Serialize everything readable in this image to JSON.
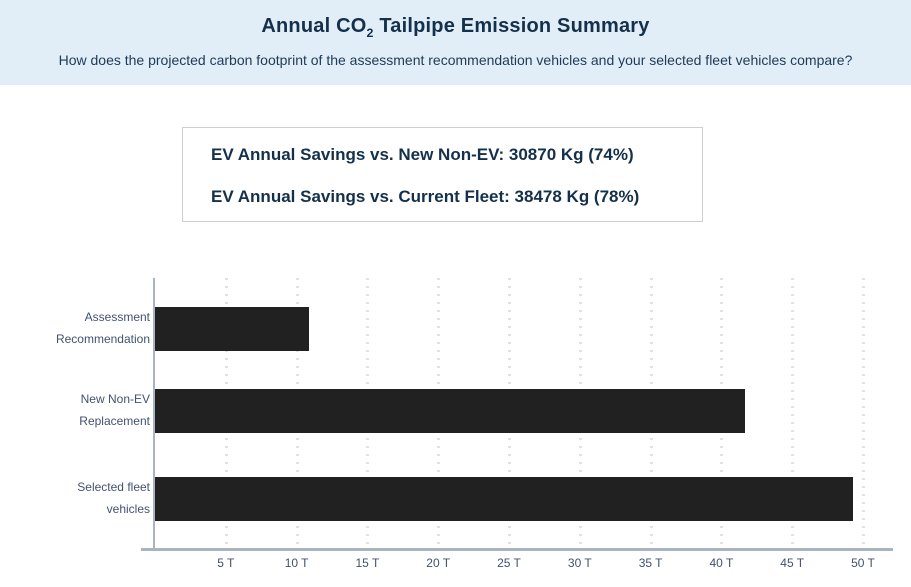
{
  "header": {
    "title_prefix": "Annual CO",
    "title_sub": "2",
    "title_suffix": " Tailpipe Emission Summary",
    "subtitle": "How does the projected carbon footprint of the assessment recommendation vehicles and your selected fleet vehicles compare?"
  },
  "savings_box": {
    "line1": "EV Annual Savings vs. New Non-EV: 30870 Kg (74%)",
    "line2": "EV Annual Savings vs. Current Fleet: 38478 Kg (78%)"
  },
  "chart_data": {
    "type": "bar",
    "orientation": "horizontal",
    "title": "Annual CO2 Tailpipe Emission Summary",
    "categories": [
      "Assessment Recommendation",
      "New Non-EV Replacement",
      "Selected fleet vehicles"
    ],
    "category_lines": [
      [
        "Assessment",
        "Recommendation"
      ],
      [
        "New Non-EV",
        "Replacement"
      ],
      [
        "Selected fleet",
        "vehicles"
      ]
    ],
    "values_tonnes": [
      10.85,
      41.7,
      49.3
    ],
    "values_kg": [
      10846,
      41716,
      49330
    ],
    "unit": "T",
    "xlabel": "",
    "ylabel": "",
    "xlim": [
      0,
      52
    ],
    "x_ticks": [
      {
        "value": 5,
        "label": "5 T"
      },
      {
        "value": 10,
        "label": "10 T"
      },
      {
        "value": 15,
        "label": "15 T"
      },
      {
        "value": 20,
        "label": "20 T"
      },
      {
        "value": 25,
        "label": "25 T"
      },
      {
        "value": 30,
        "label": "30 T"
      },
      {
        "value": 35,
        "label": "35 T"
      },
      {
        "value": 40,
        "label": "40 T"
      },
      {
        "value": 45,
        "label": "45 T"
      },
      {
        "value": 50,
        "label": "50 T"
      }
    ],
    "grid": "vertical-dotted",
    "legend": "none",
    "bar_color": "#212121"
  },
  "colors": {
    "header_bg": "#e1eef8",
    "title_text": "#14304a",
    "box_border": "#cfcfcf",
    "box_text": "#14304a",
    "bar": "#212121",
    "axis_line": "#a9b3c2",
    "gridline": "#e2e2e2",
    "tick_text": "#42526e"
  }
}
